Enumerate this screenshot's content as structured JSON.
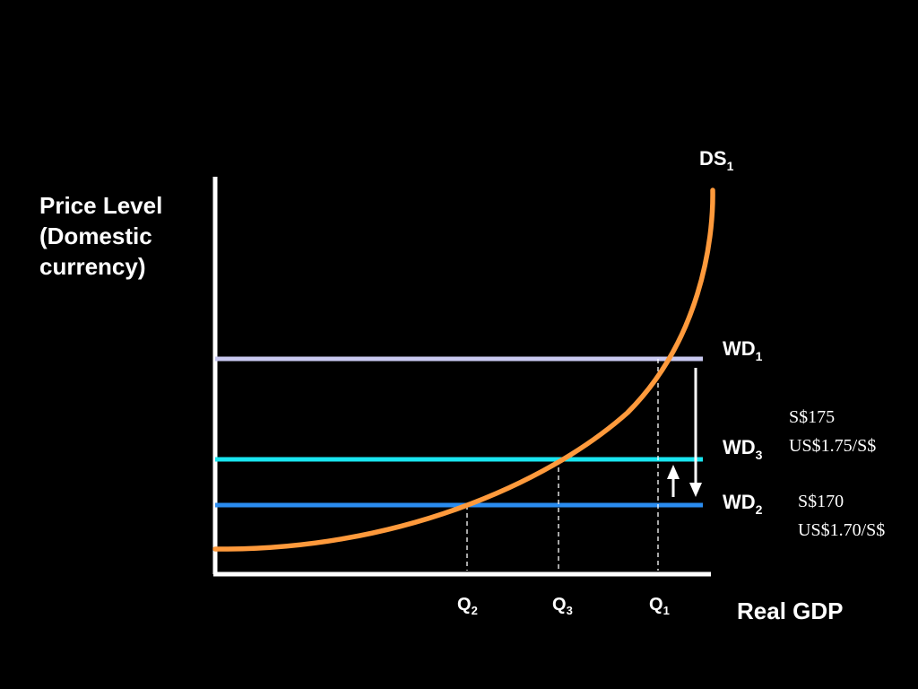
{
  "y_axis_label": [
    "Price Level",
    "(Domestic",
    "currency)"
  ],
  "x_axis_label": "Real GDP",
  "supply_curve": {
    "name": "DS",
    "sub": "1",
    "color": "#ff9a3c"
  },
  "demand_lines": [
    {
      "name": "WD",
      "sub": "1",
      "color": "#c8c8f0"
    },
    {
      "name": "WD",
      "sub": "3",
      "color": "#19e6f0"
    },
    {
      "name": "WD",
      "sub": "2",
      "color": "#2a8cf0"
    }
  ],
  "quantities": [
    {
      "name": "Q",
      "sub": "2"
    },
    {
      "name": "Q",
      "sub": "3"
    },
    {
      "name": "Q",
      "sub": "1"
    }
  ],
  "price_notes": {
    "upper": {
      "price": "S$175",
      "rate": "US$1.75/S$"
    },
    "lower": {
      "price": "S$170",
      "rate": "US$1.70/S$"
    }
  },
  "arrows": [
    {
      "name": "shift-down",
      "direction": "down",
      "from": "WD1",
      "to": "WD2"
    },
    {
      "name": "shift-up",
      "direction": "up",
      "from": "WD2",
      "to": "WD3"
    }
  ]
}
